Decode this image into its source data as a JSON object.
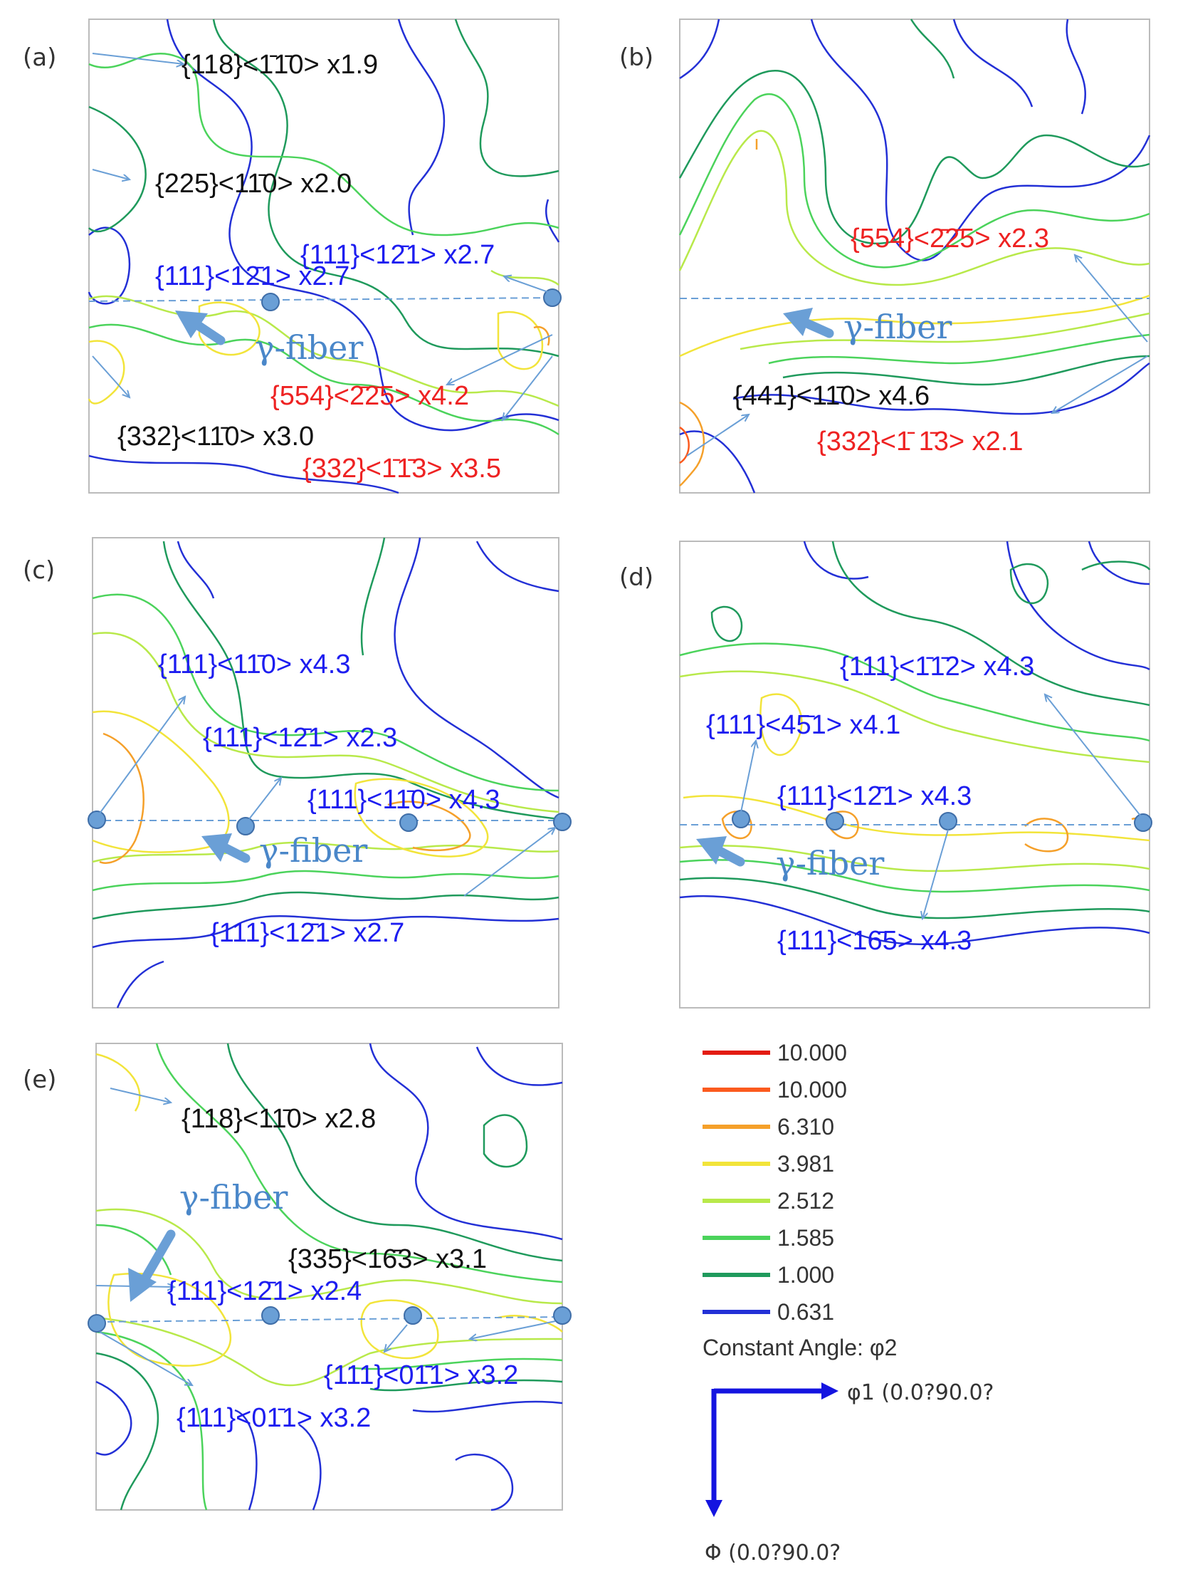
{
  "colors": {
    "red": "#e31b12",
    "orange_red": "#fb5a1e",
    "orange": "#f5a02a",
    "yellow": "#f2e43a",
    "yellow_green": "#b8e94a",
    "green": "#4bd35b",
    "dark_green": "#1f9a5c",
    "blue": "#2330d6",
    "fiber_line": "#6a9fd6",
    "fiber_marker": "#6a9fd6",
    "fiber_text": "#4a87c9",
    "black_text": "#111111",
    "blue_text": "#1d1df0",
    "red_text": "#ee2222"
  },
  "chart_data": [
    {
      "type": "contour",
      "panel_label": "(a)",
      "fiber_label": "γ-fiber",
      "annotations": [
        {
          "text": "{118}<1̄1̄0> x1.9",
          "color": "black"
        },
        {
          "text": "{225}<11̄0> x2.0",
          "color": "black"
        },
        {
          "text": "{111}<12̄1> x2.7",
          "color": "blue"
        },
        {
          "text": "{111}<12̄1> x2.7",
          "color": "blue"
        },
        {
          "text": "{554}<2̄2̄5> x4.2",
          "color": "red"
        },
        {
          "text": "{332}<11̄0> x3.0",
          "color": "black"
        },
        {
          "text": "{332}<1̄1̄3> x3.5",
          "color": "red"
        }
      ]
    },
    {
      "type": "contour",
      "panel_label": "(b)",
      "fiber_label": "γ-fiber",
      "annotations": [
        {
          "text": "{554}<2̄2̄5> x2.3",
          "color": "red"
        },
        {
          "text": "{441}<11̄0> x4.6",
          "color": "black"
        },
        {
          "text": "{332}<1̄ 1̄3> x2.1",
          "color": "red"
        }
      ]
    },
    {
      "type": "contour",
      "panel_label": "(c)",
      "fiber_label": "γ-fiber",
      "annotations": [
        {
          "text": "{111}<11̄0> x4.3",
          "color": "blue"
        },
        {
          "text": "{111}<12̄1> x2.3",
          "color": "blue"
        },
        {
          "text": "{111}<11̄0> x4.3",
          "color": "blue"
        },
        {
          "text": "{111}<12̄1> x2.7",
          "color": "blue"
        }
      ]
    },
    {
      "type": "contour",
      "panel_label": "(d)",
      "fiber_label": "γ-fiber",
      "annotations": [
        {
          "text": "{111}<1̄1̄2> x4.3",
          "color": "blue"
        },
        {
          "text": "{111}<45̄1> x4.1",
          "color": "blue"
        },
        {
          "text": "{111}<12̄1> x4.3",
          "color": "blue"
        },
        {
          "text": "{111}<16̄5> x4.3",
          "color": "blue"
        }
      ]
    },
    {
      "type": "contour",
      "panel_label": "(e)",
      "fiber_label": "γ-fiber",
      "annotations": [
        {
          "text": "{118}<11̄0> x2.8",
          "color": "black"
        },
        {
          "text": "{335}<16̄3> x3.1",
          "color": "black"
        },
        {
          "text": "{111}<12̄1> x2.4",
          "color": "blue"
        },
        {
          "text": "{111}<01̄1> x3.2",
          "color": "blue"
        },
        {
          "text": "{111}<01̄1> x3.2",
          "color": "blue"
        }
      ]
    }
  ],
  "legend": {
    "levels": [
      {
        "value": "10.000",
        "color": "#e31b12"
      },
      {
        "value": "10.000",
        "color": "#fb5a1e"
      },
      {
        "value": "6.310",
        "color": "#f5a02a"
      },
      {
        "value": "3.981",
        "color": "#f2e43a"
      },
      {
        "value": "2.512",
        "color": "#b8e94a"
      },
      {
        "value": "1.585",
        "color": "#4bd35b"
      },
      {
        "value": "1.000",
        "color": "#1f9a5c"
      },
      {
        "value": "0.631",
        "color": "#2330d6"
      }
    ],
    "constant_angle": "Constant Angle: φ2",
    "x_axis_label": "φ1 (0.0?90.0?",
    "y_axis_label": "Φ (0.0?90.0?"
  }
}
